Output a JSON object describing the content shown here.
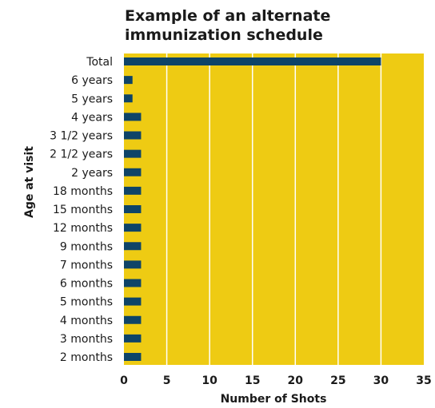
{
  "chart_data": {
    "type": "bar",
    "orientation": "horizontal",
    "title_lines": [
      "Example of an alternate",
      "immunization schedule"
    ],
    "xlabel": "Number of Shots",
    "ylabel": "Age at visit",
    "categories": [
      "Total",
      "6 years",
      "5 years",
      "4 years",
      "3 1/2 years",
      "2 1/2 years",
      "2 years",
      "18 months",
      "15 months",
      "12 months",
      "9 months",
      "7 months",
      "6 months",
      "5 months",
      "4 months",
      "3 months",
      "2 months"
    ],
    "values": [
      30,
      1,
      1,
      2,
      2,
      2,
      2,
      2,
      2,
      2,
      2,
      2,
      2,
      2,
      2,
      2,
      2
    ],
    "xlim": [
      0,
      35
    ],
    "xticks": [
      0,
      5,
      10,
      15,
      20,
      25,
      30,
      35
    ],
    "grid": "vertical",
    "colors": {
      "background": "#EECB13",
      "bar": "#0E4468",
      "grid": "#ffffff"
    }
  }
}
